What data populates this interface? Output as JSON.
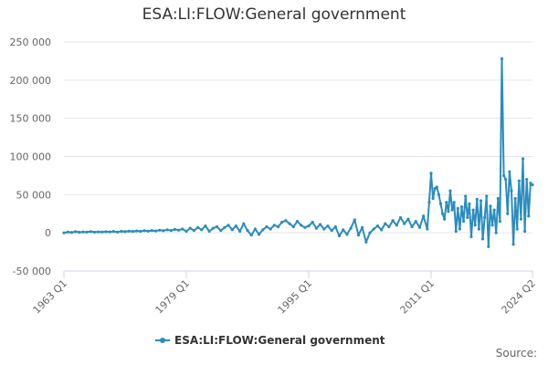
{
  "chart_data": {
    "type": "line",
    "title": "ESA:LI:FLOW:General government",
    "xlabel": "",
    "ylabel": "",
    "x_tick_labels": [
      "1963 Q1",
      "1979 Q1",
      "1995 Q1",
      "2011 Q1",
      "2024 Q2"
    ],
    "x_range": [
      "1963 Q1",
      "2024 Q2"
    ],
    "y_ticks": [
      -50000,
      0,
      50000,
      100000,
      150000,
      200000,
      250000
    ],
    "y_tick_labels": [
      "-50 000",
      "0",
      "50 000",
      "100 000",
      "150 000",
      "200 000",
      "250 000"
    ],
    "ylim": [
      -50000,
      250000
    ],
    "grid": "horizontal",
    "legend_position": "bottom",
    "series": [
      {
        "name": "ESA:LI:FLOW:General government",
        "color": "#2b8cbe",
        "points": [
          [
            "1963 Q1",
            0
          ],
          [
            "1963 Q3",
            1000
          ],
          [
            "1964 Q1",
            500
          ],
          [
            "1964 Q3",
            1500
          ],
          [
            "1965 Q1",
            800
          ],
          [
            "1965 Q3",
            1200
          ],
          [
            "1966 Q1",
            1000
          ],
          [
            "1966 Q3",
            1600
          ],
          [
            "1967 Q1",
            900
          ],
          [
            "1967 Q3",
            1300
          ],
          [
            "1968 Q1",
            1100
          ],
          [
            "1968 Q3",
            1500
          ],
          [
            "1969 Q1",
            1200
          ],
          [
            "1969 Q3",
            1800
          ],
          [
            "1970 Q1",
            1000
          ],
          [
            "1970 Q3",
            2000
          ],
          [
            "1971 Q1",
            1500
          ],
          [
            "1971 Q3",
            2200
          ],
          [
            "1972 Q1",
            1800
          ],
          [
            "1972 Q3",
            2500
          ],
          [
            "1973 Q1",
            2000
          ],
          [
            "1973 Q3",
            2800
          ],
          [
            "1974 Q1",
            2200
          ],
          [
            "1974 Q3",
            3000
          ],
          [
            "1975 Q1",
            2500
          ],
          [
            "1975 Q3",
            3500
          ],
          [
            "1976 Q1",
            2800
          ],
          [
            "1976 Q3",
            4000
          ],
          [
            "1977 Q1",
            3000
          ],
          [
            "1977 Q3",
            4500
          ],
          [
            "1978 Q1",
            3500
          ],
          [
            "1978 Q3",
            5000
          ],
          [
            "1979 Q1",
            2000
          ],
          [
            "1979 Q3",
            6000
          ],
          [
            "1980 Q1",
            3000
          ],
          [
            "1980 Q3",
            7000
          ],
          [
            "1981 Q1",
            4000
          ],
          [
            "1981 Q3",
            9000
          ],
          [
            "1982 Q1",
            2000
          ],
          [
            "1982 Q3",
            6000
          ],
          [
            "1983 Q1",
            8000
          ],
          [
            "1983 Q3",
            3000
          ],
          [
            "1984 Q1",
            7000
          ],
          [
            "1984 Q3",
            10000
          ],
          [
            "1985 Q1",
            4000
          ],
          [
            "1985 Q3",
            9000
          ],
          [
            "1986 Q1",
            2000
          ],
          [
            "1986 Q3",
            12000
          ],
          [
            "1987 Q1",
            3000
          ],
          [
            "1987 Q3",
            -3000
          ],
          [
            "1988 Q1",
            5000
          ],
          [
            "1988 Q3",
            -2000
          ],
          [
            "1989 Q1",
            4000
          ],
          [
            "1989 Q3",
            8000
          ],
          [
            "1990 Q1",
            5000
          ],
          [
            "1990 Q3",
            10000
          ],
          [
            "1991 Q1",
            8000
          ],
          [
            "1991 Q3",
            14000
          ],
          [
            "1992 Q1",
            16000
          ],
          [
            "1992 Q3",
            12000
          ],
          [
            "1993 Q1",
            8000
          ],
          [
            "1993 Q3",
            15000
          ],
          [
            "1994 Q1",
            10000
          ],
          [
            "1994 Q3",
            7000
          ],
          [
            "1995 Q1",
            9000
          ],
          [
            "1995 Q3",
            14000
          ],
          [
            "1996 Q1",
            6000
          ],
          [
            "1996 Q3",
            11000
          ],
          [
            "1997 Q1",
            5000
          ],
          [
            "1997 Q3",
            9000
          ],
          [
            "1998 Q1",
            3000
          ],
          [
            "1998 Q3",
            8000
          ],
          [
            "1999 Q1",
            -4000
          ],
          [
            "1999 Q3",
            4000
          ],
          [
            "2000 Q1",
            -2000
          ],
          [
            "2000 Q3",
            6000
          ],
          [
            "2001 Q1",
            17000
          ],
          [
            "2001 Q3",
            -3000
          ],
          [
            "2002 Q1",
            7000
          ],
          [
            "2002 Q3",
            -12000
          ],
          [
            "2003 Q1",
            0
          ],
          [
            "2003 Q3",
            5000
          ],
          [
            "2004 Q1",
            9000
          ],
          [
            "2004 Q3",
            4000
          ],
          [
            "2005 Q1",
            12000
          ],
          [
            "2005 Q3",
            8000
          ],
          [
            "2006 Q1",
            16000
          ],
          [
            "2006 Q3",
            10000
          ],
          [
            "2007 Q1",
            20000
          ],
          [
            "2007 Q3",
            12000
          ],
          [
            "2008 Q1",
            18000
          ],
          [
            "2008 Q3",
            8000
          ],
          [
            "2009 Q1",
            15000
          ],
          [
            "2009 Q3",
            7000
          ],
          [
            "2010 Q1",
            22000
          ],
          [
            "2010 Q3",
            5000
          ],
          [
            "2010 Q4",
            40000
          ],
          [
            "2011 Q1",
            78000
          ],
          [
            "2011 Q2",
            45000
          ],
          [
            "2011 Q3",
            58000
          ],
          [
            "2011 Q4",
            60000
          ],
          [
            "2012 Q1",
            50000
          ],
          [
            "2012 Q2",
            38000
          ],
          [
            "2012 Q3",
            25000
          ],
          [
            "2012 Q4",
            18000
          ],
          [
            "2013 Q1",
            40000
          ],
          [
            "2013 Q2",
            28000
          ],
          [
            "2013 Q3",
            55000
          ],
          [
            "2013 Q4",
            30000
          ],
          [
            "2014 Q1",
            40000
          ],
          [
            "2014 Q2",
            2000
          ],
          [
            "2014 Q3",
            32000
          ],
          [
            "2014 Q4",
            5000
          ],
          [
            "2015 Q1",
            34000
          ],
          [
            "2015 Q2",
            15000
          ],
          [
            "2015 Q3",
            48000
          ],
          [
            "2015 Q4",
            20000
          ],
          [
            "2016 Q1",
            38000
          ],
          [
            "2016 Q2",
            -5000
          ],
          [
            "2016 Q3",
            30000
          ],
          [
            "2016 Q4",
            10000
          ],
          [
            "2017 Q1",
            44000
          ],
          [
            "2017 Q2",
            5000
          ],
          [
            "2017 Q3",
            42000
          ],
          [
            "2017 Q4",
            -8000
          ],
          [
            "2018 Q1",
            20000
          ],
          [
            "2018 Q2",
            48000
          ],
          [
            "2018 Q3",
            -18000
          ],
          [
            "2018 Q4",
            35000
          ],
          [
            "2019 Q1",
            10000
          ],
          [
            "2019 Q2",
            30000
          ],
          [
            "2019 Q3",
            0
          ],
          [
            "2019 Q4",
            45000
          ],
          [
            "2020 Q1",
            15000
          ],
          [
            "2020 Q2",
            228000
          ],
          [
            "2020 Q3",
            75000
          ],
          [
            "2020 Q4",
            70000
          ],
          [
            "2021 Q1",
            25000
          ],
          [
            "2021 Q2",
            80000
          ],
          [
            "2021 Q3",
            55000
          ],
          [
            "2021 Q4",
            -15000
          ],
          [
            "2022 Q1",
            45000
          ],
          [
            "2022 Q2",
            5000
          ],
          [
            "2022 Q3",
            68000
          ],
          [
            "2022 Q4",
            18000
          ],
          [
            "2023 Q1",
            97000
          ],
          [
            "2023 Q2",
            2000
          ],
          [
            "2023 Q3",
            70000
          ],
          [
            "2023 Q4",
            22000
          ],
          [
            "2024 Q1",
            65000
          ],
          [
            "2024 Q2",
            63000
          ]
        ]
      }
    ]
  },
  "footer": {
    "source_label": "Source:"
  }
}
